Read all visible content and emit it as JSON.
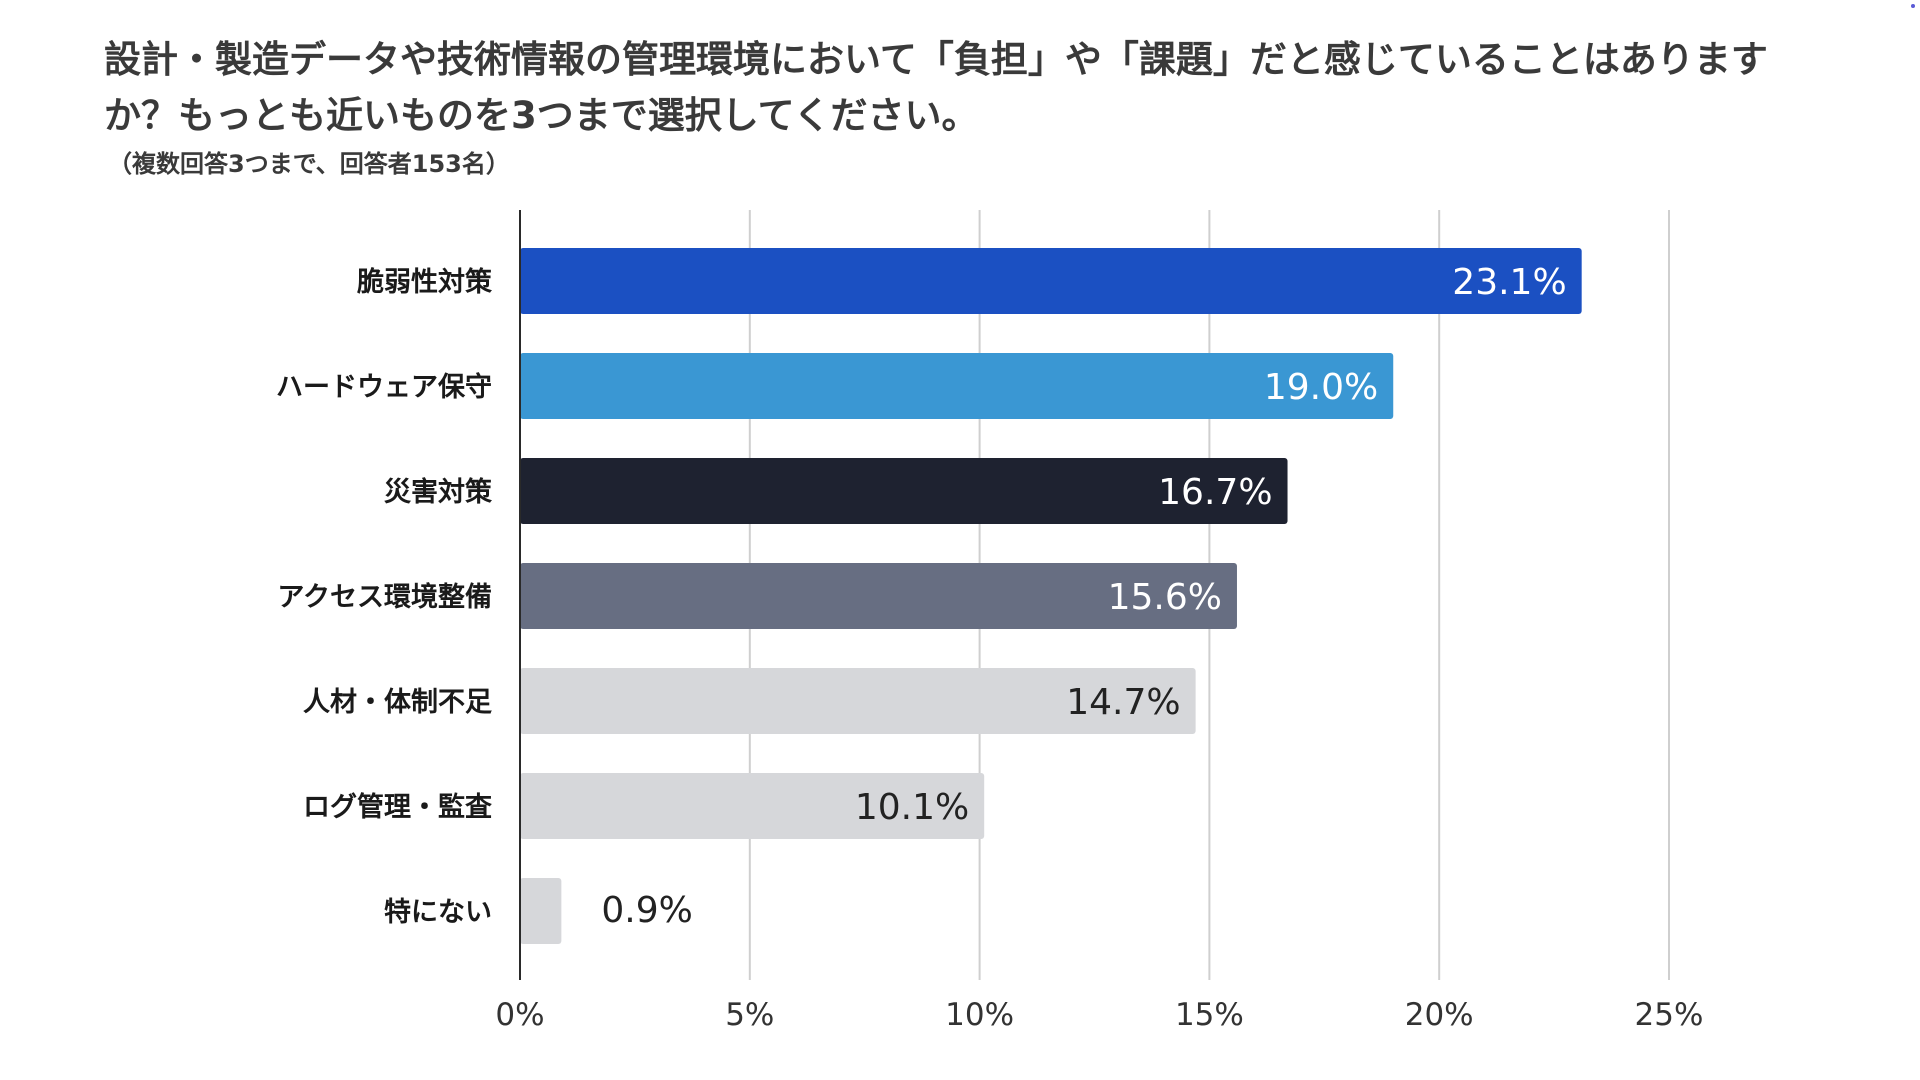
{
  "chart_data": {
    "type": "bar",
    "orientation": "horizontal",
    "title": "設計・製造データや技術情報の管理環境において「負担」や「課題」だと感じていることはありますか？もっとも近いものを3つまで選択してください。",
    "subtitle": "（複数回答3つまで、回答者153名）",
    "categories": [
      "脆弱性対策",
      "ハードウェア保守",
      "災害対策",
      "アクセス環境整備",
      "人材・体制不足",
      "ログ管理・監査",
      "特にない"
    ],
    "values": [
      23.1,
      19.0,
      16.7,
      15.6,
      14.7,
      10.1,
      0.9
    ],
    "value_labels": [
      "23.1%",
      "19.0%",
      "16.7%",
      "15.6%",
      "14.7%",
      "10.1%",
      "0.9%"
    ],
    "bar_colors": [
      "#1b50c2",
      "#3a97d3",
      "#1e2230",
      "#676e82",
      "#d6d7da",
      "#d6d7da",
      "#d6d7da"
    ],
    "label_colors": [
      "#ffffff",
      "#ffffff",
      "#ffffff",
      "#ffffff",
      "#222222",
      "#222222",
      "#222222"
    ],
    "xlim": [
      0,
      25
    ],
    "xticks": [
      0,
      5,
      10,
      15,
      20,
      25
    ],
    "xtick_labels": [
      "0%",
      "5%",
      "10%",
      "15%",
      "20%",
      "25%"
    ],
    "grid": true,
    "xlabel": "",
    "ylabel": ""
  }
}
